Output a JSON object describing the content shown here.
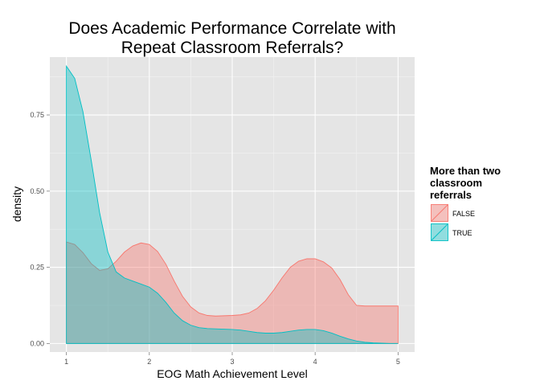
{
  "chart_data": {
    "type": "area",
    "title_lines": [
      "Does Academic Performance Correlate with",
      "Repeat Classroom Referrals?"
    ],
    "xlabel": "EOG Math Achievement Level",
    "ylabel": "density",
    "xlim": [
      0.8,
      5.2
    ],
    "ylim": [
      -0.028,
      0.94
    ],
    "x_ticks": [
      1,
      2,
      3,
      4,
      5
    ],
    "x_tick_labels": [
      "1",
      "2",
      "3",
      "4",
      "5"
    ],
    "y_ticks": [
      0.0,
      0.25,
      0.5,
      0.75
    ],
    "y_tick_labels": [
      "0.00",
      "0.25",
      "0.50",
      "0.75"
    ],
    "grid": true,
    "legend": {
      "title_lines": [
        "More than two",
        "classroom",
        "referrals"
      ],
      "placement": "right"
    },
    "series": [
      {
        "name": "FALSE",
        "fill": "#f8766d",
        "stroke": "#f8766d",
        "x": [
          1.0,
          1.1,
          1.2,
          1.3,
          1.4,
          1.5,
          1.6,
          1.7,
          1.8,
          1.9,
          2.0,
          2.1,
          2.2,
          2.3,
          2.4,
          2.5,
          2.6,
          2.7,
          2.8,
          2.9,
          3.0,
          3.1,
          3.2,
          3.3,
          3.4,
          3.5,
          3.6,
          3.7,
          3.8,
          3.9,
          4.0,
          4.1,
          4.2,
          4.3,
          4.4,
          4.5,
          4.6,
          4.7,
          4.8,
          4.9,
          5.0
        ],
        "values": [
          0.333,
          0.325,
          0.298,
          0.262,
          0.24,
          0.245,
          0.27,
          0.3,
          0.32,
          0.33,
          0.325,
          0.302,
          0.26,
          0.205,
          0.155,
          0.12,
          0.1,
          0.092,
          0.09,
          0.091,
          0.092,
          0.094,
          0.1,
          0.115,
          0.14,
          0.175,
          0.215,
          0.25,
          0.27,
          0.278,
          0.278,
          0.268,
          0.248,
          0.21,
          0.16,
          0.125,
          0.123,
          0.123,
          0.123,
          0.123,
          0.123
        ]
      },
      {
        "name": "TRUE",
        "fill": "#00bfc4",
        "stroke": "#00bfc4",
        "x": [
          1.0,
          1.1,
          1.2,
          1.3,
          1.4,
          1.5,
          1.6,
          1.7,
          1.8,
          1.9,
          2.0,
          2.1,
          2.2,
          2.3,
          2.4,
          2.5,
          2.6,
          2.7,
          2.8,
          2.9,
          3.0,
          3.1,
          3.2,
          3.3,
          3.4,
          3.5,
          3.6,
          3.7,
          3.8,
          3.9,
          4.0,
          4.1,
          4.2,
          4.3,
          4.4,
          4.5,
          4.6,
          4.7,
          4.8,
          4.9,
          5.0
        ],
        "values": [
          0.91,
          0.87,
          0.76,
          0.6,
          0.43,
          0.3,
          0.235,
          0.215,
          0.205,
          0.195,
          0.185,
          0.165,
          0.135,
          0.1,
          0.075,
          0.06,
          0.052,
          0.049,
          0.048,
          0.047,
          0.046,
          0.044,
          0.04,
          0.036,
          0.034,
          0.034,
          0.036,
          0.04,
          0.044,
          0.046,
          0.046,
          0.042,
          0.034,
          0.024,
          0.015,
          0.008,
          0.004,
          0.002,
          0.001,
          0.0,
          0.0
        ]
      }
    ]
  }
}
